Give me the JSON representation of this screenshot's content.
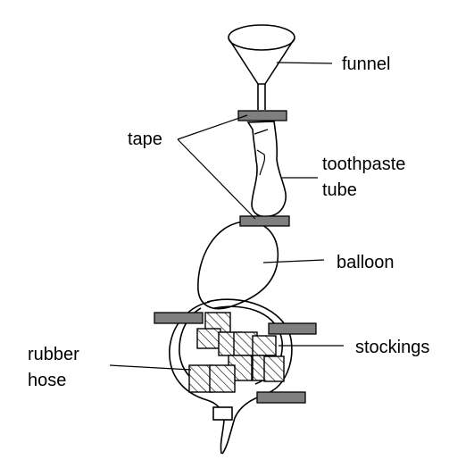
{
  "labels": {
    "funnel": "funnel",
    "tape": "tape",
    "toothpaste_line1": "toothpaste",
    "toothpaste_line2": "tube",
    "balloon": "balloon",
    "stockings": "stockings",
    "rubber_hose_line1": "rubber",
    "rubber_hose_line2": "hose"
  },
  "colors": {
    "outline": "#000000",
    "tape_fill": "#7f7f7f",
    "hatch": "#000000",
    "background": "#ffffff"
  }
}
